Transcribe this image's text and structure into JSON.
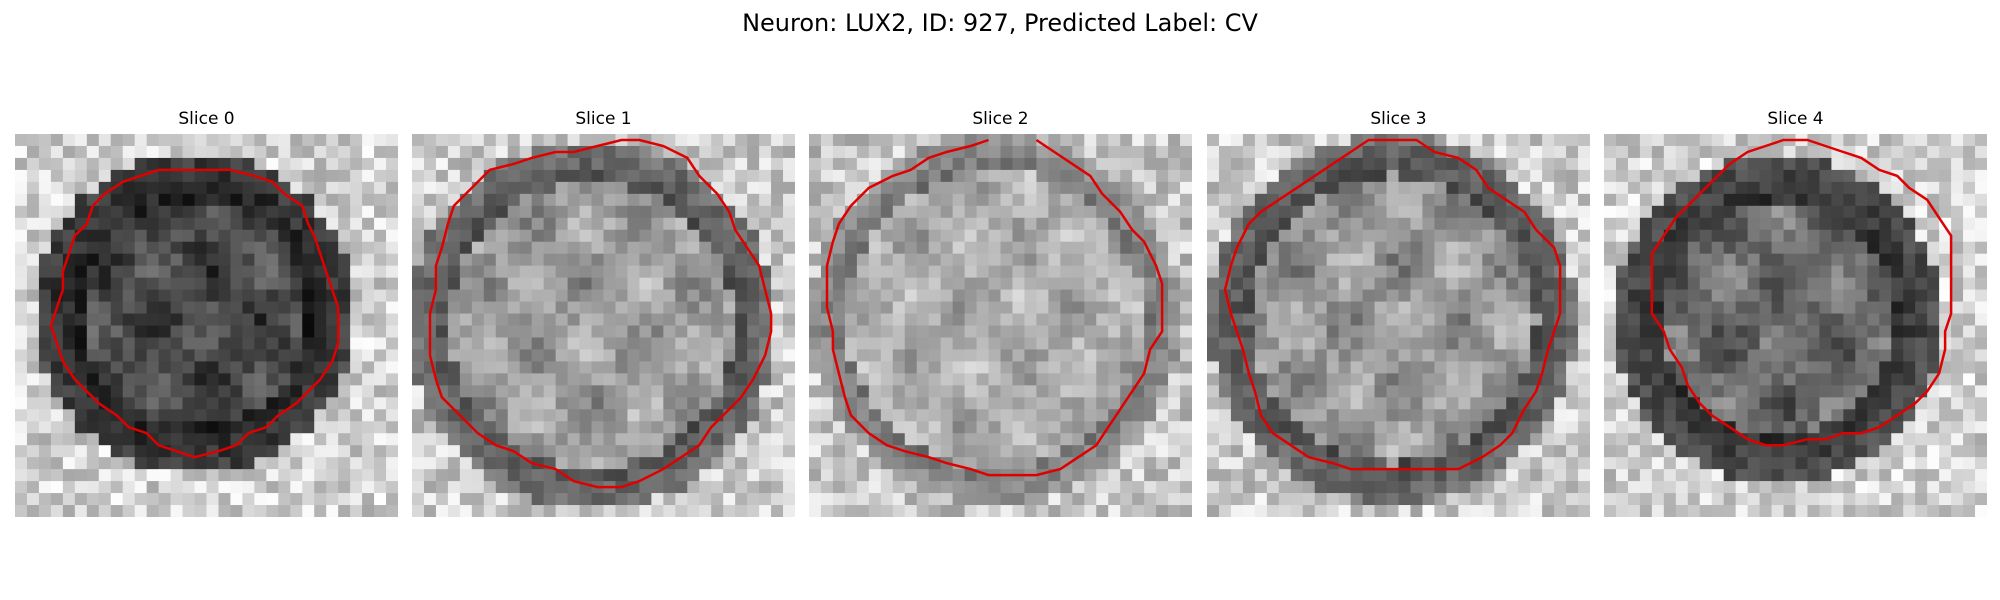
{
  "figure": {
    "title": "Neuron: LUX2, ID: 927, Predicted Label: CV"
  },
  "colors": {
    "contour": "#e00000",
    "background": "#ffffff"
  },
  "panels": [
    {
      "title": "Slice 0",
      "seed": 11
    },
    {
      "title": "Slice 1",
      "seed": 23
    },
    {
      "title": "Slice 2",
      "seed": 37
    },
    {
      "title": "Slice 3",
      "seed": 41
    },
    {
      "title": "Slice 4",
      "seed": 53
    }
  ]
}
